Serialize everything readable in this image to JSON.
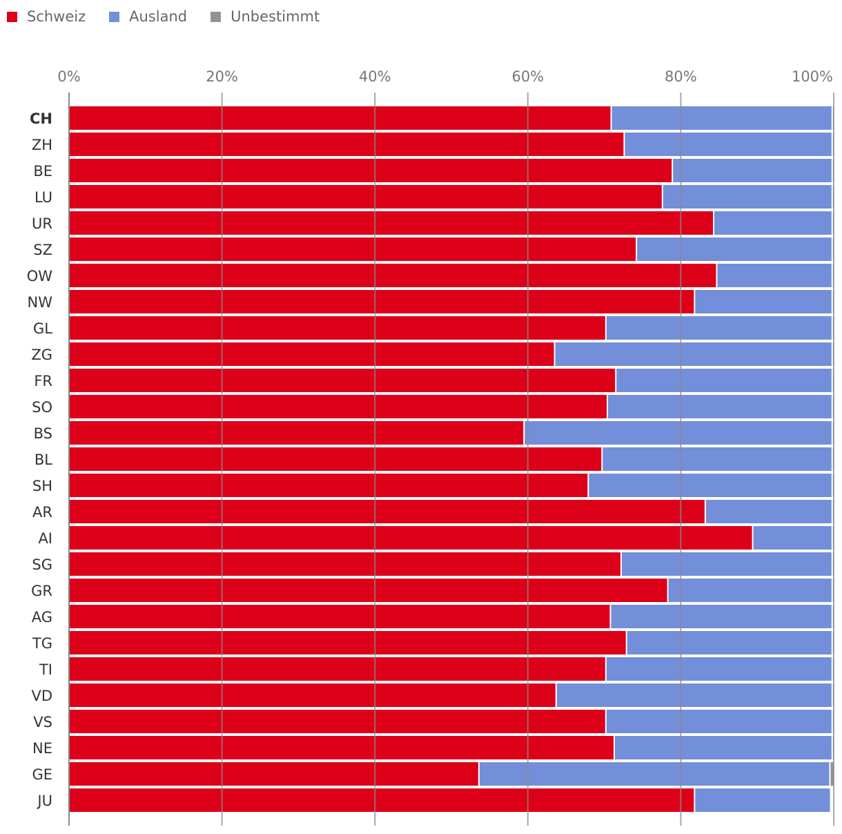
{
  "chart_data": {
    "type": "bar",
    "orientation": "horizontal",
    "stacked": true,
    "title": "",
    "xlabel": "",
    "ylabel": "",
    "xlim": [
      0,
      100
    ],
    "x_ticks": [
      "0%",
      "20%",
      "40%",
      "60%",
      "80%",
      "100%"
    ],
    "grid": true,
    "legend_placement": "top-left",
    "categories": [
      "CH",
      "ZH",
      "BE",
      "LU",
      "UR",
      "SZ",
      "OW",
      "NW",
      "GL",
      "ZG",
      "FR",
      "SO",
      "BS",
      "BL",
      "SH",
      "AR",
      "AI",
      "SG",
      "GR",
      "AG",
      "TG",
      "TI",
      "VD",
      "VS",
      "NE",
      "GE",
      "JU"
    ],
    "bold_categories": [
      "CH"
    ],
    "series": [
      {
        "name": "Schweiz",
        "color": "#dc0018",
        "values": [
          70.9,
          72.6,
          78.9,
          77.6,
          84.3,
          74.2,
          84.7,
          81.8,
          70.2,
          63.5,
          71.5,
          70.4,
          59.5,
          69.7,
          67.9,
          83.2,
          89.4,
          72.2,
          78.3,
          70.8,
          72.9,
          70.2,
          63.7,
          70.2,
          71.3,
          53.6,
          81.8
        ]
      },
      {
        "name": "Ausland",
        "color": "#738fd9",
        "values": [
          28.9,
          27.2,
          20.9,
          22.2,
          15.5,
          25.6,
          15.1,
          18.0,
          29.6,
          36.3,
          28.3,
          29.4,
          40.3,
          30.1,
          31.9,
          16.6,
          10.4,
          27.6,
          21.5,
          29.0,
          26.9,
          29.6,
          36.1,
          29.6,
          28.5,
          45.9,
          17.8
        ]
      },
      {
        "name": "Unbestimmt",
        "color": "#929292",
        "values": [
          0.2,
          0.2,
          0.2,
          0.2,
          0.2,
          0.2,
          0.2,
          0.2,
          0.2,
          0.2,
          0.2,
          0.2,
          0.2,
          0.2,
          0.2,
          0.2,
          0.2,
          0.2,
          0.2,
          0.2,
          0.2,
          0.2,
          0.2,
          0.2,
          0.2,
          0.5,
          0
        ]
      }
    ]
  }
}
